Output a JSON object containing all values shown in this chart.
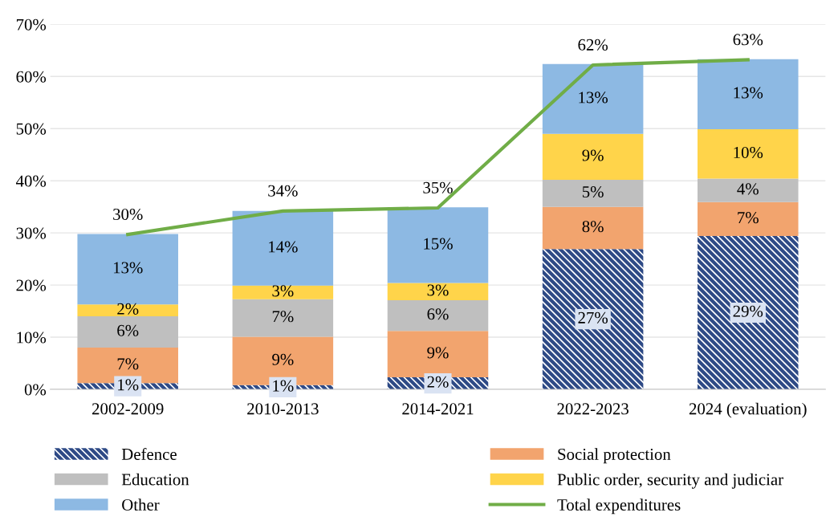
{
  "chart_data": {
    "type": "bar",
    "stacked": true,
    "categories": [
      "2002-2009",
      "2010-2013",
      "2014-2021",
      "2022-2023",
      "2024 (evaluation)"
    ],
    "ylim": [
      0,
      70
    ],
    "yticks": [
      {
        "value": 0,
        "label": "0%"
      },
      {
        "value": 10,
        "label": "10%"
      },
      {
        "value": 20,
        "label": "20%"
      },
      {
        "value": 30,
        "label": "30%"
      },
      {
        "value": 40,
        "label": "40%"
      },
      {
        "value": 50,
        "label": "50%"
      },
      {
        "value": 60,
        "label": "60%"
      },
      {
        "value": 70,
        "label": "70%"
      }
    ],
    "grid": "y",
    "legend": "bottom",
    "marker": "none",
    "line_style": "solid",
    "series": [
      {
        "name": "Defence",
        "color": "#2e4a86",
        "values": [
          1.2,
          0.8,
          2.3,
          26.9,
          29.4
        ],
        "value_labels": [
          "1%",
          "1%",
          "2%",
          "27%",
          "29%"
        ]
      },
      {
        "name": "Social protection",
        "color": "#f2a46e",
        "values": [
          6.8,
          9.3,
          8.9,
          8.1,
          6.5
        ],
        "value_labels": [
          "7%",
          "9%",
          "9%",
          "8%",
          "7%"
        ]
      },
      {
        "name": "Education",
        "color": "#bfbfbf",
        "values": [
          6,
          7.2,
          5.9,
          5.2,
          4.5
        ],
        "value_labels": [
          "6%",
          "7%",
          "6%",
          "5%",
          "4%"
        ]
      },
      {
        "name": "Public order, security and judiciar",
        "color": "#ffd44a",
        "values": [
          2.3,
          2.6,
          3.3,
          8.8,
          9.5
        ],
        "value_labels": [
          "2%",
          "3%",
          "3%",
          "9%",
          "10%"
        ]
      },
      {
        "name": "Other",
        "color": "#8db9e3",
        "values": [
          13.5,
          14.3,
          14.5,
          13.4,
          13.4
        ],
        "value_labels": [
          "13%",
          "14%",
          "15%",
          "13%",
          "13%"
        ]
      },
      {
        "name": "Total expenditures",
        "type": "line",
        "color": "#70ad47",
        "values": [
          29.7,
          34.2,
          34.8,
          62.2,
          63.2
        ],
        "value_labels": [
          "30%",
          "34%",
          "35%",
          "62%",
          "63%"
        ]
      }
    ]
  }
}
